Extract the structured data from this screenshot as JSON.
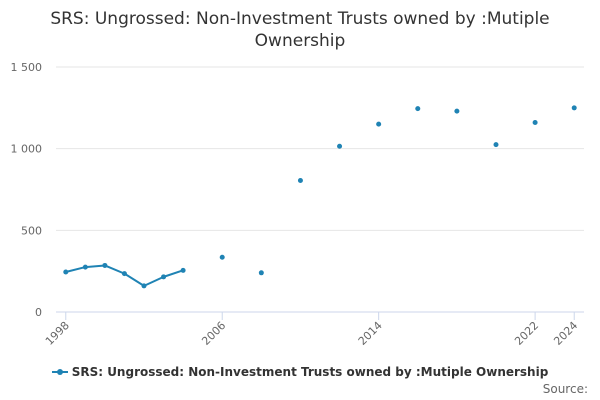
{
  "title_line1": "SRS: Ungrossed: Non-Investment Trusts owned by :Mutiple",
  "title_line2": "Ownership",
  "source_label": "Source:",
  "legend_label": "SRS: Ungrossed: Non-Investment Trusts owned by :Mutiple Ownership",
  "colors": {
    "series": "#1f83b4",
    "grid": "#e6e6e6",
    "axis": "#ccd6eb",
    "tick_text": "#666666"
  },
  "chart_data": {
    "type": "line",
    "title": "SRS: Ungrossed: Non-Investment Trusts owned by :Mutiple Ownership",
    "xlabel": "",
    "ylabel": "",
    "xlim": [
      1997.5,
      2024.5
    ],
    "ylim": [
      0,
      1500
    ],
    "x_ticks": [
      1998,
      2006,
      2014,
      2022,
      2024
    ],
    "y_ticks": [
      0,
      500,
      1000,
      1500
    ],
    "y_tick_labels": [
      "0",
      "500",
      "1 000",
      "1 500"
    ],
    "grid": true,
    "legend_position": "bottom",
    "series": [
      {
        "name": "SRS: Ungrossed: Non-Investment Trusts owned by :Mutiple Ownership",
        "x": [
          1998,
          1999,
          2000,
          2001,
          2002,
          2003,
          2004,
          2006,
          2008,
          2010,
          2012,
          2014,
          2016,
          2018,
          2020,
          2022,
          2024
        ],
        "y": [
          245,
          275,
          285,
          235,
          160,
          215,
          255,
          335,
          240,
          805,
          1015,
          1150,
          1245,
          1230,
          1025,
          1160,
          1250
        ]
      }
    ]
  }
}
